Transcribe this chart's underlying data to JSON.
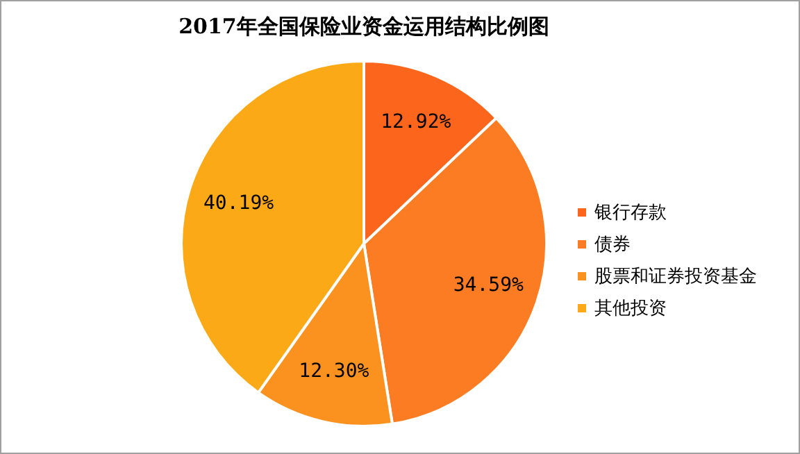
{
  "chart_data": {
    "type": "pie",
    "title": "2017年全国保险业资金运用结构比例图",
    "categories": [
      "银行存款",
      "债券",
      "股票和证券投资基金",
      "其他投资"
    ],
    "values": [
      12.92,
      34.59,
      12.3,
      40.19
    ],
    "value_labels": [
      "12.92%",
      "34.59%",
      "12.30%",
      "40.19%"
    ],
    "colors": [
      "#fc651c",
      "#fb7c22",
      "#fb921f",
      "#fba917"
    ],
    "legend": "right"
  }
}
